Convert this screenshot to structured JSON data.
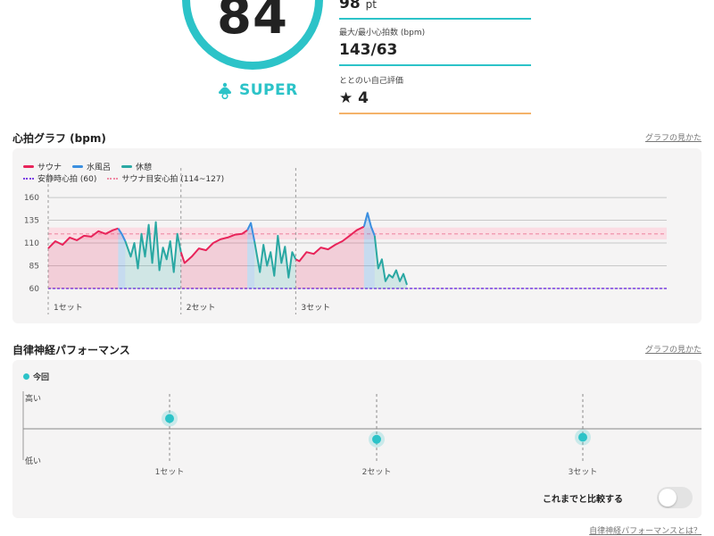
{
  "score": {
    "value": "84",
    "rank": "SUPER"
  },
  "stats": [
    {
      "label": "",
      "value": "98",
      "unit": "pt"
    },
    {
      "label": "最大/最小心拍数 (bpm)",
      "value": "143/63"
    },
    {
      "label": "ととのい自己評価",
      "value": "4",
      "icon": "star-icon"
    }
  ],
  "heart_section": {
    "title": "心拍グラフ (bpm)",
    "link": "グラフの見かた"
  },
  "heart_legend": {
    "sauna": "サウナ",
    "mizuburo": "水風呂",
    "rest": "休憩",
    "resting_hr": "安静時心拍 (60)",
    "sauna_target": "サウナ目安心拍 (114~127)"
  },
  "ans_section": {
    "title": "自律神経パフォーマンス",
    "link": "グラフの見かた"
  },
  "ans_legend": "今回",
  "ans_levels": {
    "high": "高い",
    "low": "低い"
  },
  "compare_toggle": {
    "label": "これまでと比較する",
    "on": false
  },
  "footer_link": "自律神経パフォーマンスとは？",
  "colors": {
    "accent": "#2cc3c8",
    "sauna": "#e8245a",
    "mizuburo": "#3b8fe0",
    "rest": "#2aa8a3",
    "resting": "#7b3fe4",
    "target": "#f08aa4"
  },
  "chart_data": [
    {
      "type": "line",
      "ylabel": "",
      "yticks": [
        160,
        135,
        110,
        85,
        60
      ],
      "ylim": [
        55,
        165
      ],
      "xlim": [
        0,
        100
      ],
      "grid": true,
      "legend": "top-left",
      "set_labels": [
        "1セット",
        "2セット",
        "3セット"
      ],
      "set_starts": [
        0,
        37,
        69
      ],
      "resting_hr": 60,
      "target_band": [
        114,
        127
      ],
      "target_center": 120,
      "series": [
        {
          "name": "サウナ",
          "segments": [
            {
              "x": [
                0,
                2,
                4,
                6,
                8,
                10,
                12,
                14,
                16,
                18,
                19.5
              ],
              "y": [
                104,
                112,
                108,
                116,
                113,
                118,
                117,
                123,
                120,
                124,
                126
              ]
            },
            {
              "x": [
                37,
                38,
                40,
                42,
                44,
                46,
                48,
                50,
                52,
                54,
                55.5
              ],
              "y": [
                100,
                88,
                95,
                104,
                102,
                110,
                114,
                116,
                119,
                120,
                124
              ]
            },
            {
              "x": [
                69,
                70,
                72,
                74,
                76,
                78,
                80,
                82,
                84,
                86,
                88
              ],
              "y": [
                92,
                90,
                100,
                98,
                105,
                103,
                108,
                112,
                118,
                124,
                128
              ]
            }
          ]
        },
        {
          "name": "水風呂",
          "segments": [
            {
              "x": [
                19.5,
                20.5,
                21.5
              ],
              "y": [
                126,
                120,
                112
              ]
            },
            {
              "x": [
                55.5,
                56.5,
                57.5
              ],
              "y": [
                124,
                132,
                112
              ]
            },
            {
              "x": [
                88,
                89,
                90,
                91
              ],
              "y": [
                128,
                143,
                128,
                118
              ]
            }
          ]
        },
        {
          "name": "休憩",
          "segments": [
            {
              "x": [
                21.5,
                23,
                24,
                25,
                26,
                27,
                28,
                29,
                30,
                31,
                32,
                33,
                34,
                35,
                36,
                37
              ],
              "y": [
                112,
                95,
                110,
                82,
                120,
                95,
                130,
                88,
                133,
                80,
                105,
                92,
                112,
                78,
                120,
                100
              ]
            },
            {
              "x": [
                57.5,
                59,
                60,
                61,
                62,
                63,
                64,
                65,
                66,
                67,
                68,
                69
              ],
              "y": [
                112,
                78,
                108,
                85,
                100,
                74,
                118,
                88,
                106,
                72,
                100,
                92
              ]
            },
            {
              "x": [
                91,
                92,
                93,
                94,
                95,
                96,
                97,
                98,
                99,
                100
              ],
              "y": [
                118,
                82,
                92,
                68,
                75,
                72,
                80,
                68,
                76,
                64
              ]
            }
          ]
        }
      ]
    },
    {
      "type": "scatter",
      "categories": [
        "1セット",
        "2セット",
        "3セット"
      ],
      "series": [
        {
          "name": "今回",
          "values": [
            0.66,
            0.35,
            0.38
          ]
        }
      ],
      "ylabels": [
        "高い",
        "低い"
      ]
    }
  ]
}
